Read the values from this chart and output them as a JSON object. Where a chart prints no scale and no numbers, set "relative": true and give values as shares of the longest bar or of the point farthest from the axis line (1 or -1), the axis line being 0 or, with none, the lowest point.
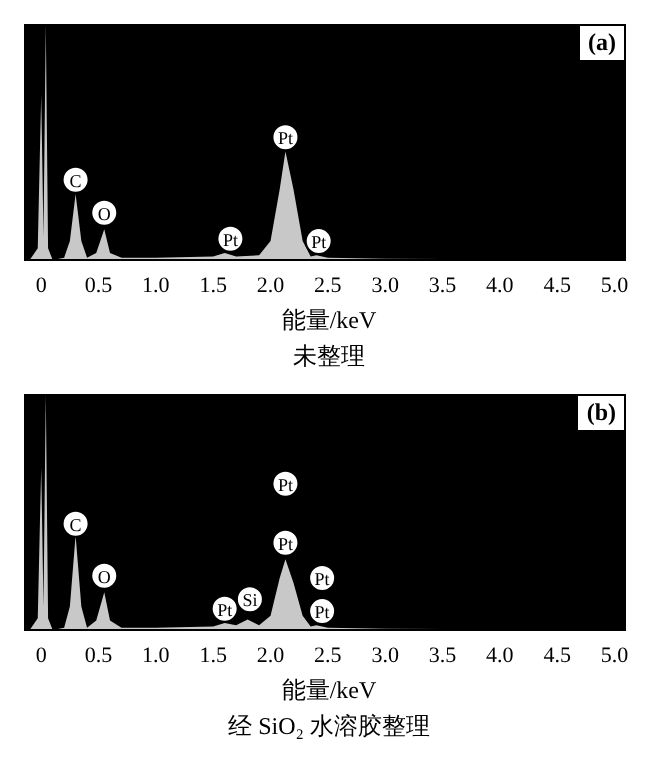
{
  "chart_data": [
    {
      "type": "area",
      "title": "未整理",
      "xlabel": "能量/keV",
      "relative": true,
      "tick_labels": "x",
      "color": "#c8c8c8",
      "x": [
        -0.1,
        -0.03,
        0.0,
        0.02,
        0.04,
        0.06,
        0.1,
        0.2,
        0.25,
        0.3,
        0.35,
        0.4,
        0.48,
        0.55,
        0.6,
        0.7,
        1.0,
        1.5,
        1.6,
        1.7,
        1.9,
        2.0,
        2.08,
        2.13,
        2.2,
        2.28,
        2.35,
        2.4,
        2.5,
        3.0,
        4.0,
        5.0
      ],
      "values": [
        0,
        0.05,
        0.7,
        0.1,
        1.0,
        0.05,
        0,
        0.01,
        0.08,
        0.28,
        0.08,
        0.01,
        0.03,
        0.13,
        0.03,
        0.01,
        0.01,
        0.015,
        0.03,
        0.015,
        0.02,
        0.08,
        0.3,
        0.46,
        0.3,
        0.08,
        0.015,
        0.02,
        0.01,
        0.005,
        0.003,
        0.002
      ],
      "xlim": [
        -0.15,
        5.1
      ],
      "xticks": [
        0,
        0.5,
        {
          "value": 1,
          "label": "1.0"
        },
        1.5,
        {
          "value": 2,
          "label": "2.0"
        },
        2.5,
        {
          "value": 3,
          "label": "3.0"
        },
        3.5,
        {
          "value": 4,
          "label": "4.0"
        },
        4.5,
        {
          "value": 5,
          "label": "5.0"
        }
      ],
      "annotations": [
        "(a)",
        {
          "text": "C",
          "x": 0.3,
          "y": 0.34
        },
        {
          "text": "O",
          "x": 0.55,
          "y": 0.2
        },
        {
          "text": "Pt",
          "x": 1.65,
          "y": 0.09
        },
        {
          "text": "Pt",
          "x": 2.13,
          "y": 0.52
        },
        {
          "text": "Pt",
          "x": 2.42,
          "y": 0.08
        }
      ]
    },
    {
      "type": "area",
      "title": "经 SiO₂ 水溶胶整理",
      "xlabel": "能量/keV",
      "relative": true,
      "tick_labels": "x",
      "color": "#c8c8c8",
      "x": [
        -0.1,
        -0.03,
        0.0,
        0.02,
        0.04,
        0.06,
        0.1,
        0.2,
        0.25,
        0.3,
        0.35,
        0.4,
        0.48,
        0.55,
        0.6,
        0.7,
        1.0,
        1.5,
        1.6,
        1.7,
        1.8,
        1.9,
        2.0,
        2.08,
        2.13,
        2.2,
        2.28,
        2.35,
        2.4,
        2.5,
        3.0,
        4.0,
        5.0
      ],
      "values": [
        0,
        0.05,
        0.69,
        0.1,
        1.0,
        0.05,
        0,
        0.01,
        0.1,
        0.4,
        0.1,
        0.01,
        0.04,
        0.16,
        0.04,
        0.01,
        0.01,
        0.015,
        0.03,
        0.02,
        0.045,
        0.02,
        0.06,
        0.22,
        0.3,
        0.2,
        0.06,
        0.015,
        0.02,
        0.01,
        0.005,
        0.003,
        0.002
      ],
      "xlim": [
        -0.15,
        5.1
      ],
      "xticks": [
        0,
        0.5,
        {
          "value": 1,
          "label": "1.0"
        },
        1.5,
        {
          "value": 2,
          "label": "2.0"
        },
        2.5,
        {
          "value": 3,
          "label": "3.0"
        },
        3.5,
        {
          "value": 4,
          "label": "4.0"
        },
        4.5,
        {
          "value": 5,
          "label": "5.0"
        }
      ],
      "annotations": [
        "(b)",
        {
          "text": "C",
          "x": 0.3,
          "y": 0.45
        },
        {
          "text": "O",
          "x": 0.55,
          "y": 0.23
        },
        {
          "text": "Pt",
          "x": 1.6,
          "y": 0.09
        },
        {
          "text": "Si",
          "x": 1.82,
          "y": 0.13
        },
        {
          "text": "Pt",
          "x": 2.13,
          "y": 0.62
        },
        {
          "text": "Pt",
          "x": 2.13,
          "y": 0.37
        },
        {
          "text": "Pt",
          "x": 2.45,
          "y": 0.22
        },
        {
          "text": "Pt",
          "x": 2.45,
          "y": 0.08
        }
      ]
    }
  ]
}
